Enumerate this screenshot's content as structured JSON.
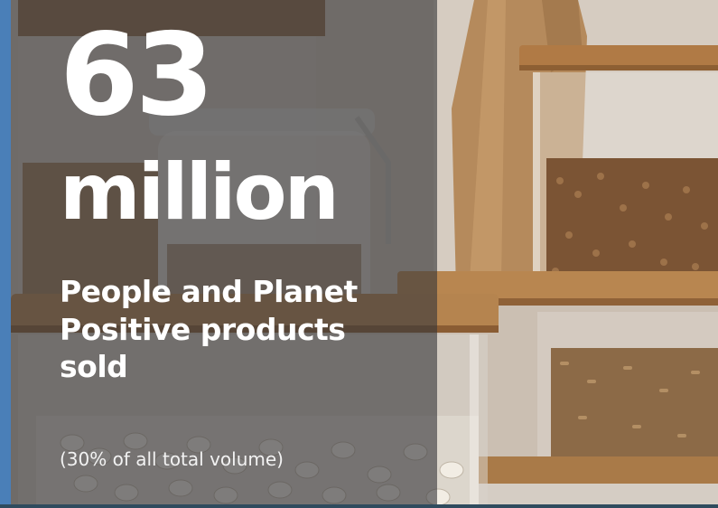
{
  "stat": {
    "number": "63",
    "unit": "million",
    "description": "People and Planet Positive products sold",
    "footnote": "(30% of all total volume)"
  },
  "colors": {
    "accent_bar": "#4a7fb8",
    "overlay": "#37373a",
    "text": "#ffffff"
  }
}
